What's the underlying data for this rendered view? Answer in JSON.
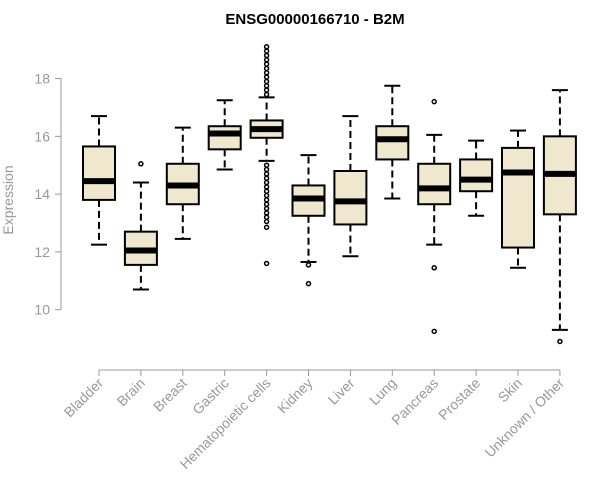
{
  "chart_data": {
    "type": "boxplot",
    "title": "ENSG00000166710 - B2M",
    "ylabel": "Expression",
    "xlabel": "",
    "ylim": [
      8.5,
      19.3
    ],
    "yticks": [
      10,
      12,
      14,
      16,
      18
    ],
    "box_fill": "#efe8cf",
    "categories": [
      "Bladder",
      "Brain",
      "Breast",
      "Gastric",
      "Hematopoietic cells",
      "Kidney",
      "Liver",
      "Lung",
      "Pancreas",
      "Prostate",
      "Skin",
      "Unknown / Other"
    ],
    "boxes": [
      {
        "name": "Bladder",
        "whislo": 12.25,
        "q1": 13.8,
        "med": 14.45,
        "q3": 15.65,
        "whishi": 16.7,
        "outliers": []
      },
      {
        "name": "Brain",
        "whislo": 10.7,
        "q1": 11.55,
        "med": 12.05,
        "q3": 12.7,
        "whishi": 14.4,
        "outliers": [
          15.05
        ]
      },
      {
        "name": "Breast",
        "whislo": 12.45,
        "q1": 13.65,
        "med": 14.3,
        "q3": 15.05,
        "whishi": 16.3,
        "outliers": []
      },
      {
        "name": "Gastric",
        "whislo": 14.85,
        "q1": 15.55,
        "med": 16.1,
        "q3": 16.35,
        "whishi": 17.25,
        "outliers": []
      },
      {
        "name": "Hematopoietic cells",
        "whislo": 15.15,
        "q1": 15.95,
        "med": 16.25,
        "q3": 16.55,
        "whishi": 17.35,
        "outliers": [
          19.1,
          18.95,
          18.8,
          18.65,
          18.5,
          18.35,
          18.2,
          18.05,
          17.9,
          17.75,
          17.6,
          17.45,
          15.0,
          14.85,
          14.7,
          14.55,
          14.4,
          14.25,
          14.1,
          13.95,
          13.8,
          13.65,
          13.5,
          13.35,
          13.2,
          13.05,
          12.85,
          11.6
        ]
      },
      {
        "name": "Kidney",
        "whislo": 11.65,
        "q1": 13.25,
        "med": 13.85,
        "q3": 14.3,
        "whishi": 15.35,
        "outliers": [
          11.55,
          10.9
        ]
      },
      {
        "name": "Liver",
        "whislo": 11.85,
        "q1": 12.95,
        "med": 13.75,
        "q3": 14.8,
        "whishi": 16.7,
        "outliers": []
      },
      {
        "name": "Lung",
        "whislo": 13.85,
        "q1": 15.2,
        "med": 15.9,
        "q3": 16.35,
        "whishi": 17.75,
        "outliers": []
      },
      {
        "name": "Pancreas",
        "whislo": 12.25,
        "q1": 13.65,
        "med": 14.2,
        "q3": 15.05,
        "whishi": 16.05,
        "outliers": [
          17.2,
          11.45,
          9.25
        ]
      },
      {
        "name": "Prostate",
        "whislo": 13.25,
        "q1": 14.1,
        "med": 14.5,
        "q3": 15.2,
        "whishi": 15.85,
        "outliers": []
      },
      {
        "name": "Skin",
        "whislo": 11.45,
        "q1": 12.15,
        "med": 14.75,
        "q3": 15.6,
        "whishi": 16.2,
        "outliers": []
      },
      {
        "name": "Unknown / Other",
        "whislo": 9.3,
        "q1": 13.3,
        "med": 14.7,
        "q3": 16.0,
        "whishi": 17.6,
        "outliers": [
          8.9
        ]
      }
    ]
  }
}
